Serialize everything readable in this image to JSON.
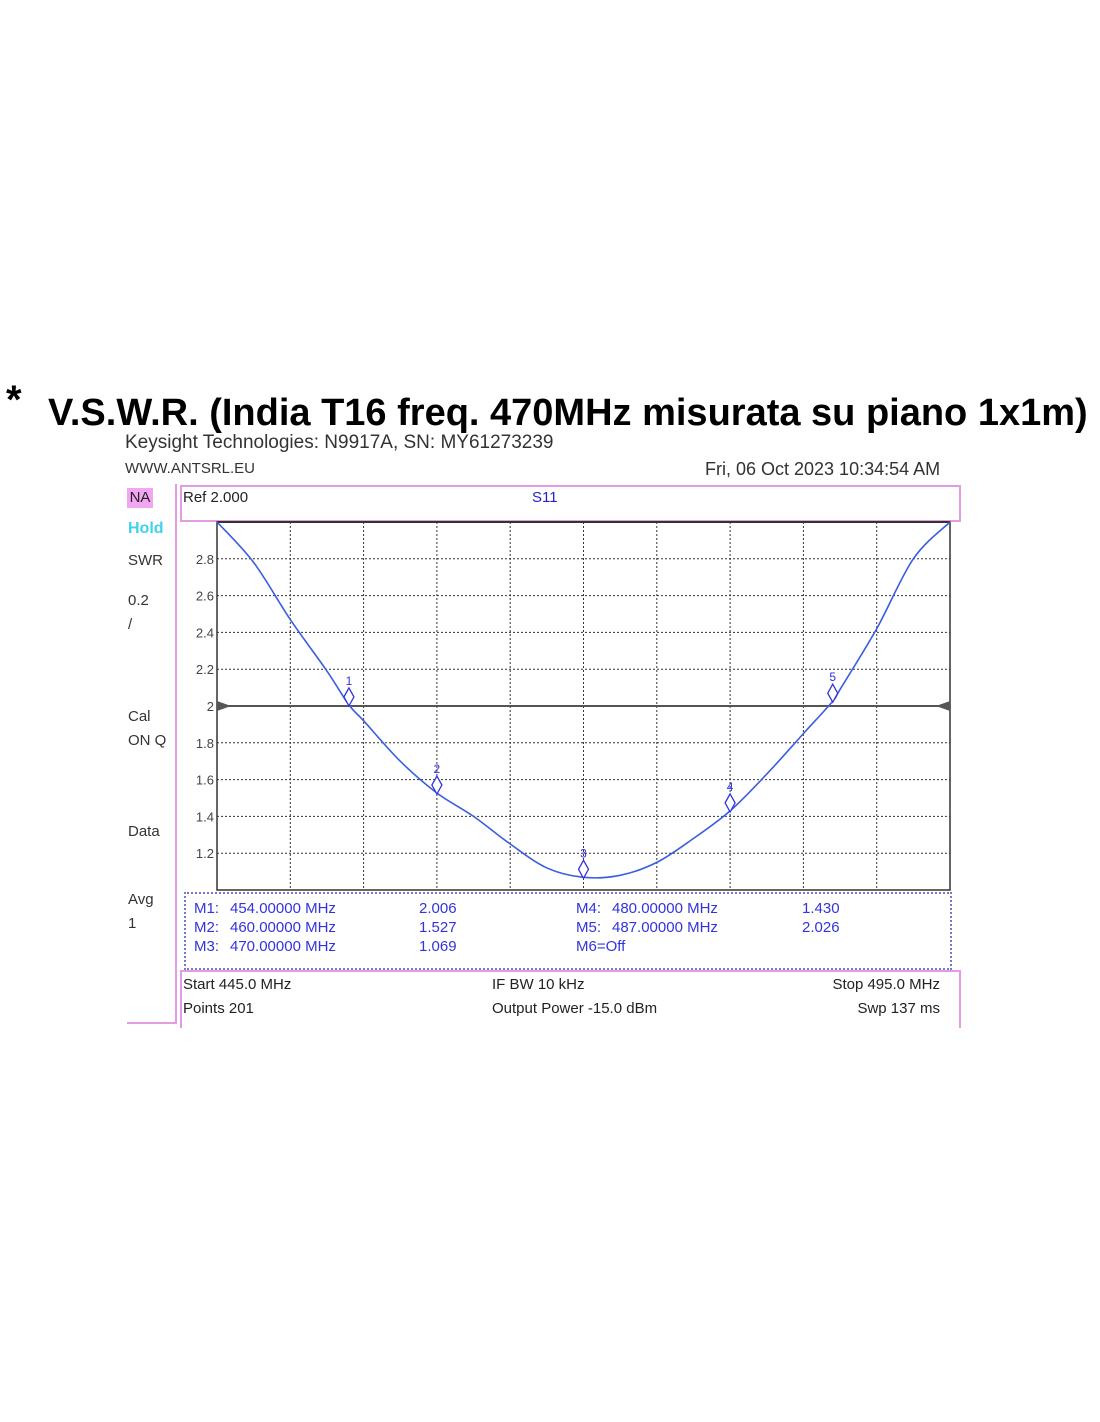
{
  "page": {
    "bullet": "*",
    "title": "V.S.W.R. (India T16 freq. 470MHz misurata su piano 1x1m)"
  },
  "header": {
    "instrument": "Keysight Technologies: N9917A, SN: MY61273239",
    "website": "WWW.ANTSRL.EU",
    "datetime": "Fri, 06 Oct 2023 10:34:54 AM"
  },
  "sidebar": {
    "mode": "NA",
    "hold": "Hold",
    "format": "SWR",
    "scale_value": "0.2",
    "scale_unit": "/",
    "cal": "Cal",
    "cal_state": "ON Q",
    "data": "Data",
    "avg": "Avg",
    "avg_value": "1"
  },
  "trace_header": {
    "ref": "Ref 2.000",
    "param": "S11"
  },
  "markers_table": [
    {
      "label": "M1:",
      "freq": "454.00000 MHz",
      "value": "2.006"
    },
    {
      "label": "M2:",
      "freq": "460.00000 MHz",
      "value": "1.527"
    },
    {
      "label": "M3:",
      "freq": "470.00000 MHz",
      "value": "1.069"
    },
    {
      "label": "M4:",
      "freq": "480.00000 MHz",
      "value": "1.430"
    },
    {
      "label": "M5:",
      "freq": "487.00000 MHz",
      "value": "2.026"
    },
    {
      "label": "M6=Off",
      "freq": "",
      "value": ""
    }
  ],
  "footer": {
    "start": "Start 445.0 MHz",
    "points": "Points 201",
    "ifbw": "IF BW 10 kHz",
    "power": "Output Power -15.0 dBm",
    "stop": "Stop 495.0 MHz",
    "sweep": "Swp 137 ms"
  },
  "colors": {
    "trace": "#3a5ee0",
    "marker": "#3333dd",
    "grid": "#333333",
    "frame_accent": "#e39ce3",
    "hold": "#3fd1ee"
  },
  "chart_data": {
    "type": "line",
    "title": "S11",
    "xlabel": "",
    "ylabel": "",
    "xlim": [
      445.0,
      495.0
    ],
    "ylim": [
      1.0,
      3.0
    ],
    "reference_level": 2.0,
    "y_ticks": [
      "2.8",
      "2.6",
      "2.4",
      "2.2",
      "2",
      "1.8",
      "1.6",
      "1.4",
      "1.2"
    ],
    "grid": true,
    "series": [
      {
        "x": [
          445.0,
          447.5,
          450.0,
          452.5,
          454.0,
          455.0,
          457.5,
          460.0,
          462.5,
          465.0,
          467.5,
          470.0,
          472.5,
          475.0,
          477.5,
          480.0,
          482.5,
          485.0,
          487.0,
          487.5,
          490.0,
          492.5,
          495.0
        ],
        "values": [
          3.0,
          2.78,
          2.47,
          2.19,
          2.006,
          1.92,
          1.7,
          1.527,
          1.4,
          1.25,
          1.12,
          1.069,
          1.08,
          1.15,
          1.28,
          1.43,
          1.63,
          1.85,
          2.026,
          2.09,
          2.42,
          2.8,
          3.0
        ]
      }
    ],
    "markers": [
      {
        "id": "1",
        "x": 454.0,
        "y": 2.006
      },
      {
        "id": "2",
        "x": 460.0,
        "y": 1.527
      },
      {
        "id": "3",
        "x": 470.0,
        "y": 1.069
      },
      {
        "id": "4",
        "x": 480.0,
        "y": 1.43
      },
      {
        "id": "5",
        "x": 487.0,
        "y": 2.026
      }
    ]
  }
}
